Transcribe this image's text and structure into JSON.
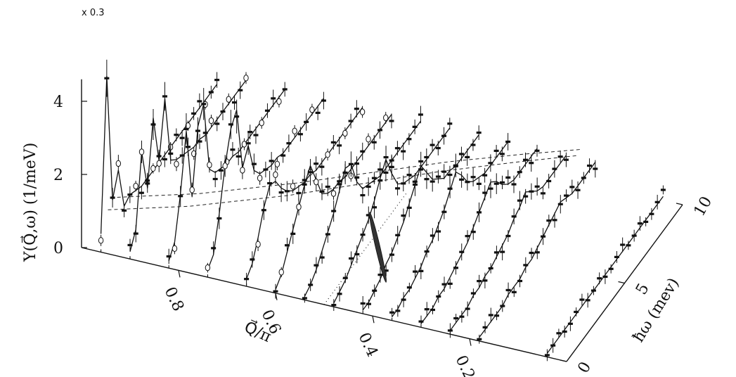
{
  "chart_data": {
    "type": "3d-waterfall",
    "scale_note": "x 0.3",
    "z_axis": {
      "label": "Υ(Q⃗,ω) (1/meV)",
      "ticks": [
        {
          "value": 0,
          "label": "0"
        },
        {
          "value": 2,
          "label": "2"
        },
        {
          "value": 4,
          "label": "4"
        }
      ],
      "range": [
        0,
        4.6
      ]
    },
    "q_axis": {
      "label": "Q⃗/π",
      "ticks": [
        {
          "value": 0.8,
          "label": "0.8"
        },
        {
          "value": 0.6,
          "label": "0.6"
        },
        {
          "value": 0.4,
          "label": "0.4"
        },
        {
          "value": 0.2,
          "label": "0.2"
        }
      ],
      "range": [
        1.0,
        0.0
      ]
    },
    "w_axis": {
      "label": "ħω (mev)",
      "ticks": [
        {
          "value": 0,
          "label": "0"
        },
        {
          "value": 5,
          "label": "5"
        },
        {
          "value": 10,
          "label": "10"
        }
      ],
      "range": [
        0,
        10
      ]
    },
    "omega_grid": [
      0,
      0.5,
      1,
      1.5,
      2,
      2.5,
      3,
      3.5,
      4,
      4.5,
      5,
      5.5,
      6,
      6.5,
      7,
      7.5,
      8,
      8.5,
      9,
      9.5,
      10
    ],
    "series": [
      {
        "q": 0.96,
        "values": [
          0.5,
          4.6,
          1.0,
          1.6,
          0.4,
          0.5,
          0.4,
          0.3,
          0.3,
          0.3,
          0.3,
          0.3,
          0.3,
          0.3,
          0.3,
          0.3,
          0.3,
          0.3,
          0.3,
          0.3,
          0.3
        ]
      },
      {
        "q": 0.9,
        "values": [
          0.2,
          0.6,
          2.5,
          1.3,
          3.0,
          1.6,
          3.1,
          1.2,
          1.0,
          0.9,
          0.8,
          0.7,
          0.7,
          0.6,
          0.6,
          0.6,
          0.6,
          0.6,
          0.6,
          0.6,
          0.6
        ]
      },
      {
        "q": 0.82,
        "values": [
          0.2,
          0.5,
          1.6,
          3.1,
          1.1,
          2.8,
          3.2,
          1.2,
          0.9,
          0.8,
          0.7,
          0.7,
          0.6,
          0.6,
          0.6,
          0.6,
          0.6,
          0.6,
          0.6,
          0.6,
          0.6
        ]
      },
      {
        "q": 0.74,
        "values": [
          0.2,
          0.4,
          1.3,
          2.4,
          3.2,
          3.5,
          1.7,
          2.1,
          1.2,
          0.9,
          0.8,
          0.7,
          0.7,
          0.6,
          0.6,
          0.6,
          0.6,
          0.6,
          0.6,
          0.6,
          0.6
        ]
      },
      {
        "q": 0.66,
        "values": [
          0.2,
          0.4,
          0.9,
          1.5,
          1.9,
          1.8,
          1.4,
          1.1,
          0.9,
          0.8,
          0.7,
          0.7,
          0.6,
          0.6,
          0.6,
          0.6,
          0.6,
          0.6,
          0.6,
          0.6,
          0.6
        ]
      },
      {
        "q": 0.6,
        "values": [
          0.1,
          0.3,
          0.7,
          1.1,
          1.5,
          1.9,
          2.2,
          1.6,
          1.0,
          0.8,
          0.7,
          0.7,
          0.6,
          0.6,
          0.6,
          0.6,
          0.6,
          0.6,
          0.6,
          0.6,
          0.6
        ]
      },
      {
        "q": 0.54,
        "values": [
          0.1,
          0.2,
          0.4,
          0.7,
          1.0,
          1.3,
          1.7,
          2.1,
          2.0,
          1.3,
          0.9,
          0.8,
          0.7,
          0.6,
          0.6,
          0.6,
          0.6,
          0.6,
          0.6,
          0.6,
          0.6
        ]
      },
      {
        "q": 0.48,
        "values": [
          0.1,
          0.2,
          0.3,
          0.5,
          0.7,
          0.9,
          1.1,
          1.4,
          1.8,
          2.1,
          1.5,
          1.0,
          0.8,
          0.7,
          0.6,
          0.6,
          0.6,
          0.6,
          0.6,
          0.6,
          0.6
        ]
      },
      {
        "q": 0.42,
        "values": [
          0.1,
          0.1,
          0.2,
          0.3,
          0.5,
          0.6,
          0.8,
          1.0,
          1.3,
          1.6,
          1.9,
          1.5,
          1.1,
          0.9,
          0.7,
          0.7,
          0.6,
          0.6,
          0.6,
          0.6,
          0.6
        ]
      },
      {
        "q": 0.36,
        "values": [
          0.1,
          0.1,
          0.2,
          0.2,
          0.3,
          0.4,
          0.6,
          0.7,
          0.9,
          1.1,
          1.4,
          1.7,
          1.4,
          1.0,
          0.8,
          0.7,
          0.6,
          0.6,
          0.6,
          0.6,
          0.6
        ]
      },
      {
        "q": 0.3,
        "values": [
          0.1,
          0.1,
          0.1,
          0.2,
          0.2,
          0.3,
          0.4,
          0.5,
          0.6,
          0.8,
          1.0,
          1.2,
          1.4,
          1.2,
          0.9,
          0.7,
          0.6,
          0.6,
          0.6,
          0.6,
          0.6
        ]
      },
      {
        "q": 0.24,
        "values": [
          0.1,
          0.1,
          0.1,
          0.1,
          0.2,
          0.2,
          0.3,
          0.3,
          0.4,
          0.5,
          0.6,
          0.8,
          0.9,
          1.1,
          0.9,
          0.7,
          0.6,
          0.6,
          0.6,
          0.6,
          0.6
        ]
      },
      {
        "q": 0.18,
        "values": [
          0.1,
          0.1,
          0.1,
          0.1,
          0.1,
          0.2,
          0.2,
          0.2,
          0.3,
          0.3,
          0.4,
          0.5,
          0.6,
          0.7,
          0.8,
          0.7,
          0.6,
          0.6,
          0.6,
          0.6,
          0.6
        ]
      },
      {
        "q": 0.04,
        "values": [
          0.1,
          0.1,
          0.1,
          0.1,
          0.1,
          0.1,
          0.1,
          0.1,
          0.1,
          0.1,
          0.1,
          0.1,
          0.1,
          0.1,
          0.1,
          0.1,
          0.1,
          0.1,
          0.1,
          0.1,
          0.1
        ]
      }
    ],
    "dispersion_curves": [
      {
        "points": [
          {
            "q": 0.96,
            "w": 0.6
          },
          {
            "q": 0.82,
            "w": 1.8
          },
          {
            "q": 0.66,
            "w": 3.6
          },
          {
            "q": 0.54,
            "w": 5.2
          },
          {
            "q": 0.42,
            "w": 6.8
          },
          {
            "q": 0.3,
            "w": 8.2
          },
          {
            "q": 0.2,
            "w": 9.3
          }
        ]
      },
      {
        "points": [
          {
            "q": 0.96,
            "w": 1.4
          },
          {
            "q": 0.82,
            "w": 2.6
          },
          {
            "q": 0.66,
            "w": 4.4
          },
          {
            "q": 0.54,
            "w": 5.9
          },
          {
            "q": 0.42,
            "w": 7.4
          },
          {
            "q": 0.3,
            "w": 8.7
          },
          {
            "q": 0.2,
            "w": 9.7
          }
        ]
      }
    ],
    "dotted_guide": [
      {
        "q": 0.5,
        "w": 0
      },
      {
        "q": 0.5,
        "w": 7.2
      }
    ],
    "resolution_ellipse": {
      "q_range": [
        0.42,
        0.54
      ],
      "w_range": [
        2.0,
        5.6
      ]
    }
  }
}
